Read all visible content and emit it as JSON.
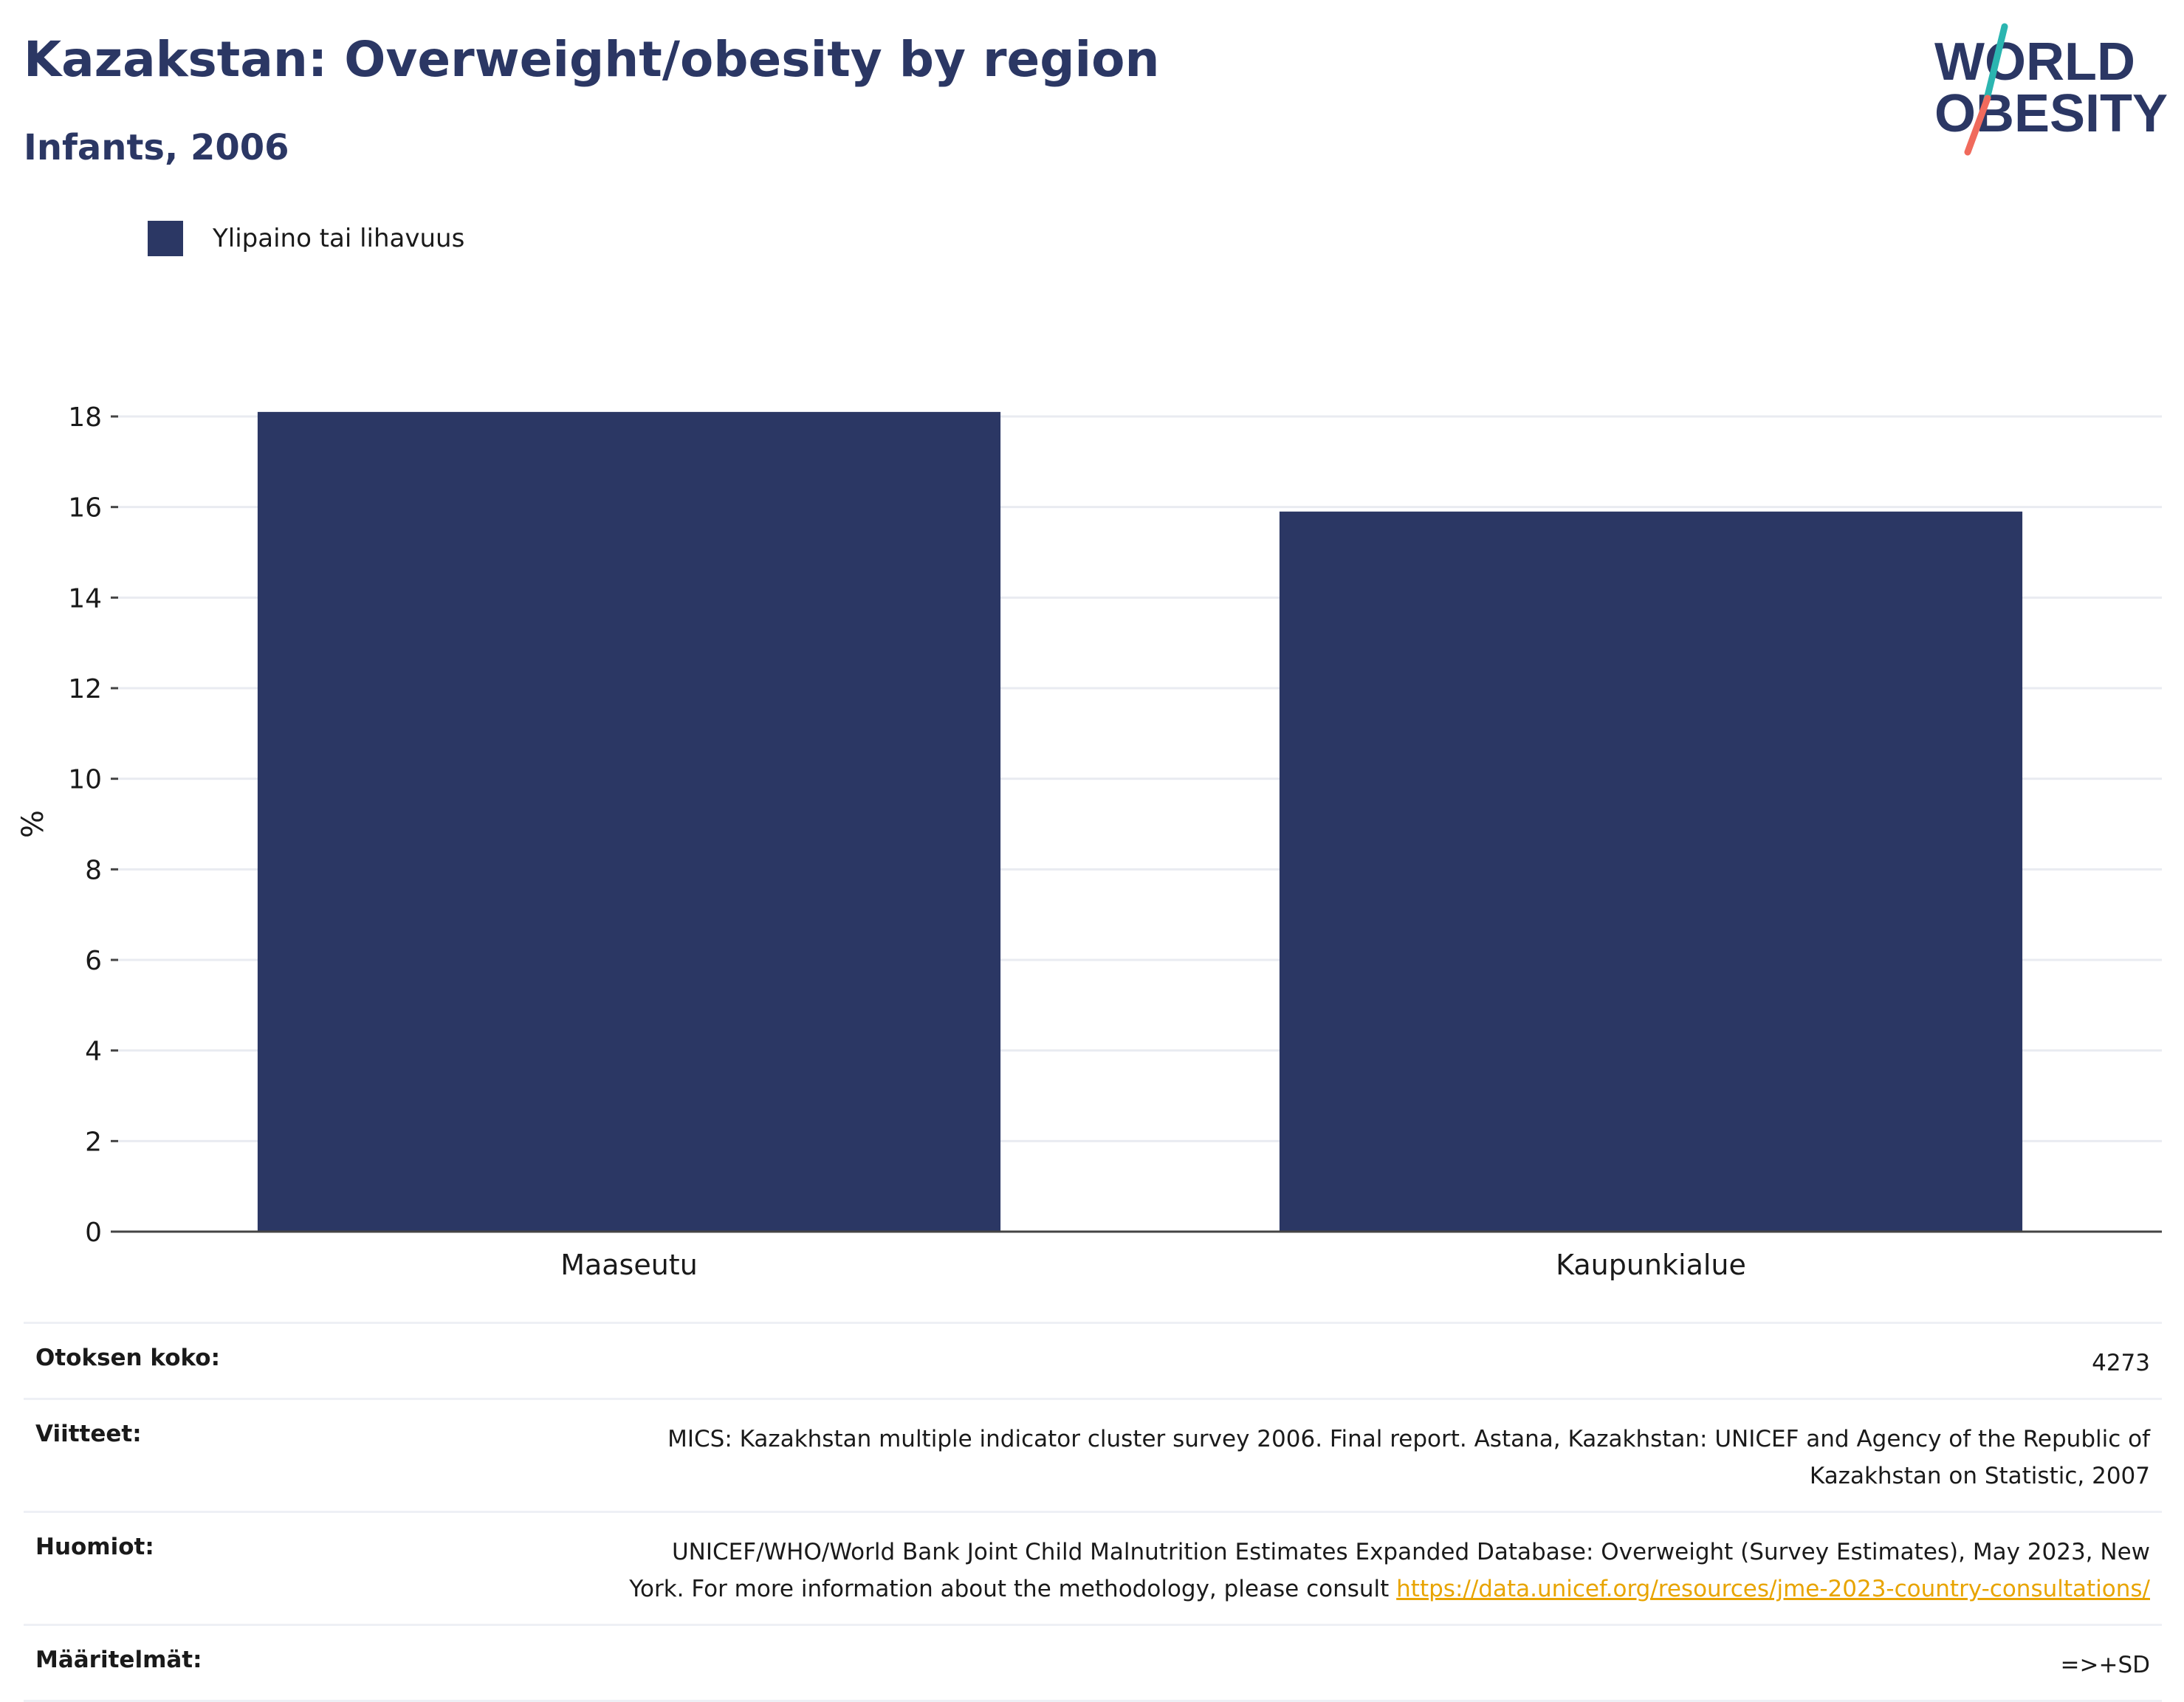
{
  "header": {
    "title": "Kazakstan: Overweight/obesity by region",
    "subtitle": "Infants, 2006"
  },
  "logo": {
    "line1": "WORLD",
    "line2": "OBESITY",
    "colors": {
      "text": "#2b3764",
      "slash_top": "#2bb5b0",
      "slash_bottom": "#f06a5c"
    }
  },
  "legend": {
    "label": "Ylipaino tai lihavuus",
    "color": "#2b3764"
  },
  "chart_data": {
    "type": "bar",
    "categories": [
      "Maaseutu",
      "Kaupunkialue"
    ],
    "series": [
      {
        "name": "Ylipaino tai lihavuus",
        "values": [
          18.1,
          15.9
        ],
        "color": "#2b3764"
      }
    ],
    "ylabel": "%",
    "ylim": [
      0,
      18
    ],
    "yticks": [
      0,
      2,
      4,
      6,
      8,
      10,
      12,
      14,
      16,
      18
    ],
    "grid": true,
    "legend_position": "top-left"
  },
  "meta": [
    {
      "key": "Otoksen koko:",
      "value": "4273"
    },
    {
      "key": "Viitteet:",
      "value": "MICS: Kazakhstan multiple indicator cluster survey 2006. Final report. Astana, Kazakhstan: UNICEF and Agency of the Republic of Kazakhstan on Statistic, 2007"
    },
    {
      "key": "Huomiot:",
      "value": "UNICEF/WHO/World Bank Joint Child Malnutrition Estimates Expanded Database: Overweight (Survey Estimates), May 2023, New York. For more information about the methodology, please consult ",
      "link": "https://data.unicef.org/resources/jme-2023-country-consultations/"
    },
    {
      "key": "Määritelmät:",
      "value": "=>+SD"
    }
  ]
}
